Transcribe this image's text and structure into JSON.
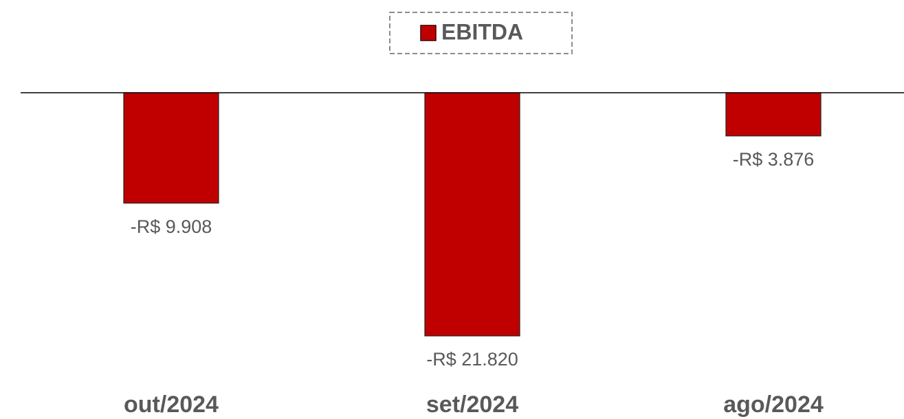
{
  "chart_data": {
    "type": "bar",
    "categories": [
      "out/2024",
      "set/2024",
      "ago/2024"
    ],
    "series": [
      {
        "name": "EBITDA",
        "color": "#c00000",
        "values": [
          -9908,
          -21820,
          -3876
        ],
        "value_labels": [
          "-R$ 9.908",
          "-R$ 21.820",
          "-R$ 3.876"
        ]
      }
    ],
    "ylim": [
      -25000,
      0
    ],
    "legend": "top"
  }
}
